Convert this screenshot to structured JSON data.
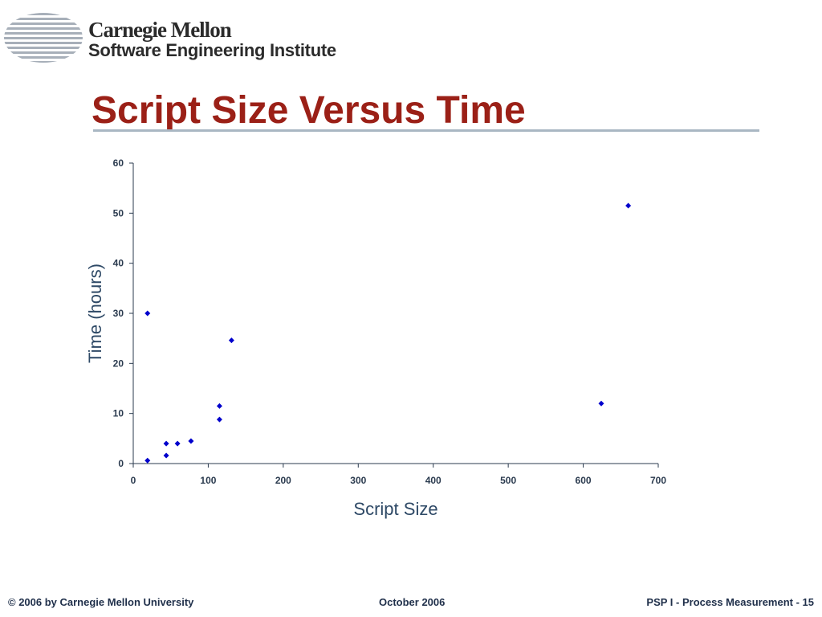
{
  "header": {
    "org_line1": "Carnegie Mellon",
    "org_line2": "Software Engineering Institute",
    "logo_icon": "sei-striped-globe-icon"
  },
  "slide": {
    "title": "Script Size Versus Time"
  },
  "colors": {
    "title": "#9b2017",
    "marker": "#0000cc",
    "axis": "#2b3b4f",
    "rule": "#a9b7c3"
  },
  "chart_data": {
    "type": "scatter",
    "title": "",
    "xlabel": "Script Size",
    "ylabel": "Time (hours)",
    "xlim": [
      0,
      700
    ],
    "ylim": [
      0,
      60
    ],
    "x_ticks": [
      0,
      100,
      200,
      300,
      400,
      500,
      600,
      700
    ],
    "y_ticks": [
      0,
      10,
      20,
      30,
      40,
      50,
      60
    ],
    "grid": false,
    "legend": "none",
    "marker": "diamond",
    "series": [
      {
        "points": [
          {
            "x": 19,
            "y": 30
          },
          {
            "x": 19,
            "y": 0.6
          },
          {
            "x": 44,
            "y": 4
          },
          {
            "x": 44,
            "y": 1.6
          },
          {
            "x": 59,
            "y": 4
          },
          {
            "x": 77,
            "y": 4.5
          },
          {
            "x": 115,
            "y": 11.5
          },
          {
            "x": 115,
            "y": 8.8
          },
          {
            "x": 131,
            "y": 24.6
          },
          {
            "x": 624,
            "y": 12
          },
          {
            "x": 660,
            "y": 51.5
          }
        ]
      }
    ]
  },
  "footer": {
    "copyright": "© 2006 by Carnegie Mellon University",
    "date": "October 2006",
    "page": "PSP I - Process Measurement - 15"
  }
}
